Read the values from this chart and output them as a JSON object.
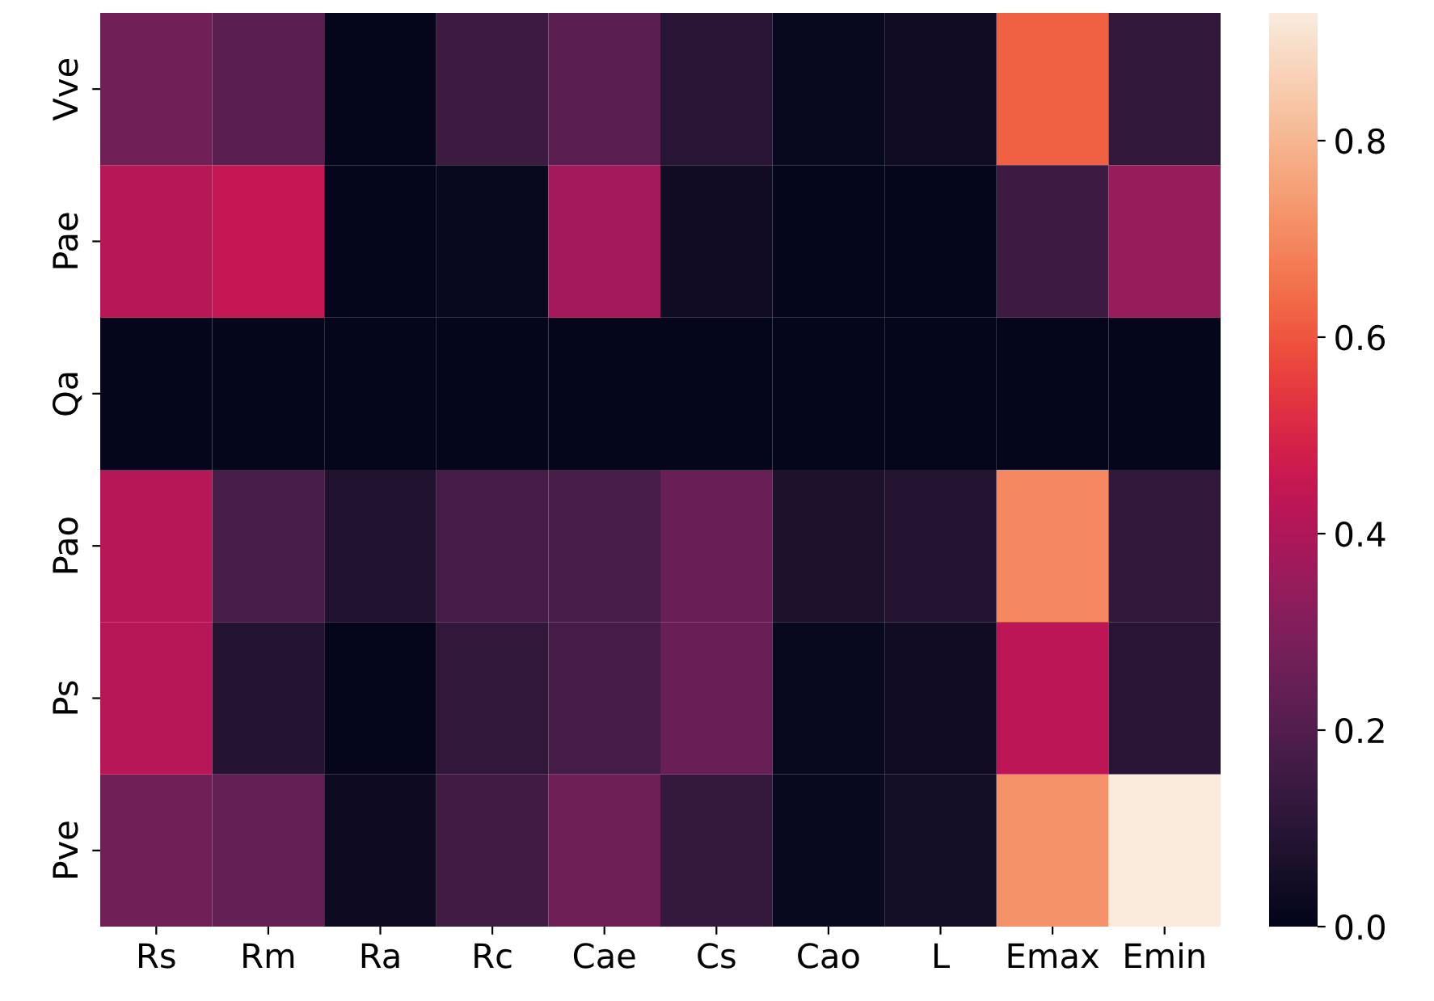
{
  "chart_data": {
    "type": "heatmap",
    "categories": [
      "Rs",
      "Rm",
      "Ra",
      "Rc",
      "Cae",
      "Cs",
      "Cao",
      "L",
      "Emax",
      "Emin"
    ],
    "y_categories": [
      "Vve",
      "Pae",
      "Qa",
      "Pao",
      "Ps",
      "Pve"
    ],
    "cells": [
      [
        0.27,
        0.22,
        0.01,
        0.15,
        0.22,
        0.1,
        0.02,
        0.04,
        0.62,
        0.12
      ],
      [
        0.42,
        0.45,
        0.01,
        0.02,
        0.38,
        0.04,
        0.01,
        0.01,
        0.15,
        0.35
      ],
      [
        0.01,
        0.01,
        0.01,
        0.01,
        0.01,
        0.01,
        0.01,
        0.01,
        0.01,
        0.01
      ],
      [
        0.42,
        0.18,
        0.08,
        0.17,
        0.18,
        0.25,
        0.07,
        0.09,
        0.7,
        0.12
      ],
      [
        0.42,
        0.09,
        0.01,
        0.12,
        0.17,
        0.25,
        0.02,
        0.04,
        0.43,
        0.1
      ],
      [
        0.27,
        0.24,
        0.03,
        0.16,
        0.26,
        0.13,
        0.02,
        0.05,
        0.72,
        0.93
      ]
    ],
    "clim": [
      0,
      0.93
    ],
    "cticks": [
      {
        "value": 0,
        "label": "0.0"
      },
      {
        "value": 0.2,
        "label": "0.2"
      },
      {
        "value": 0.4,
        "label": "0.4"
      },
      {
        "value": 0.6,
        "label": "0.6"
      },
      {
        "value": 0.8,
        "label": "0.8"
      }
    ]
  }
}
